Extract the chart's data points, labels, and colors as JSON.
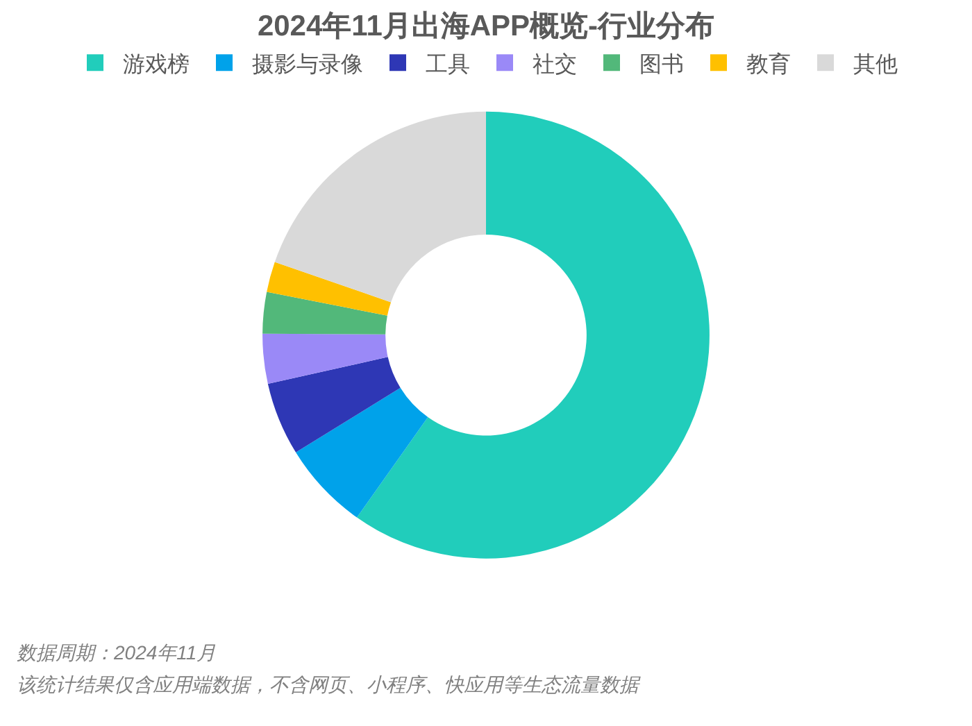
{
  "chart_data": {
    "type": "donut",
    "title": "2024年11月出海APP概览-行业分布",
    "categories": [
      "游戏榜",
      "摄影与录像",
      "工具",
      "社交",
      "图书",
      "教育",
      "其他"
    ],
    "values": [
      59.8,
      6.4,
      5.3,
      3.6,
      3.0,
      2.2,
      19.7
    ],
    "colors": [
      "#21cdbb",
      "#00a2ea",
      "#2e37b5",
      "#9a89f7",
      "#52b87a",
      "#ffc000",
      "#d9d9d9"
    ],
    "legend": "top",
    "annotations": [
      "数据周期：2024年11月",
      "该统计结果仅含应用端数据，不含网页、小程序、快应用等生态流量数据"
    ]
  }
}
